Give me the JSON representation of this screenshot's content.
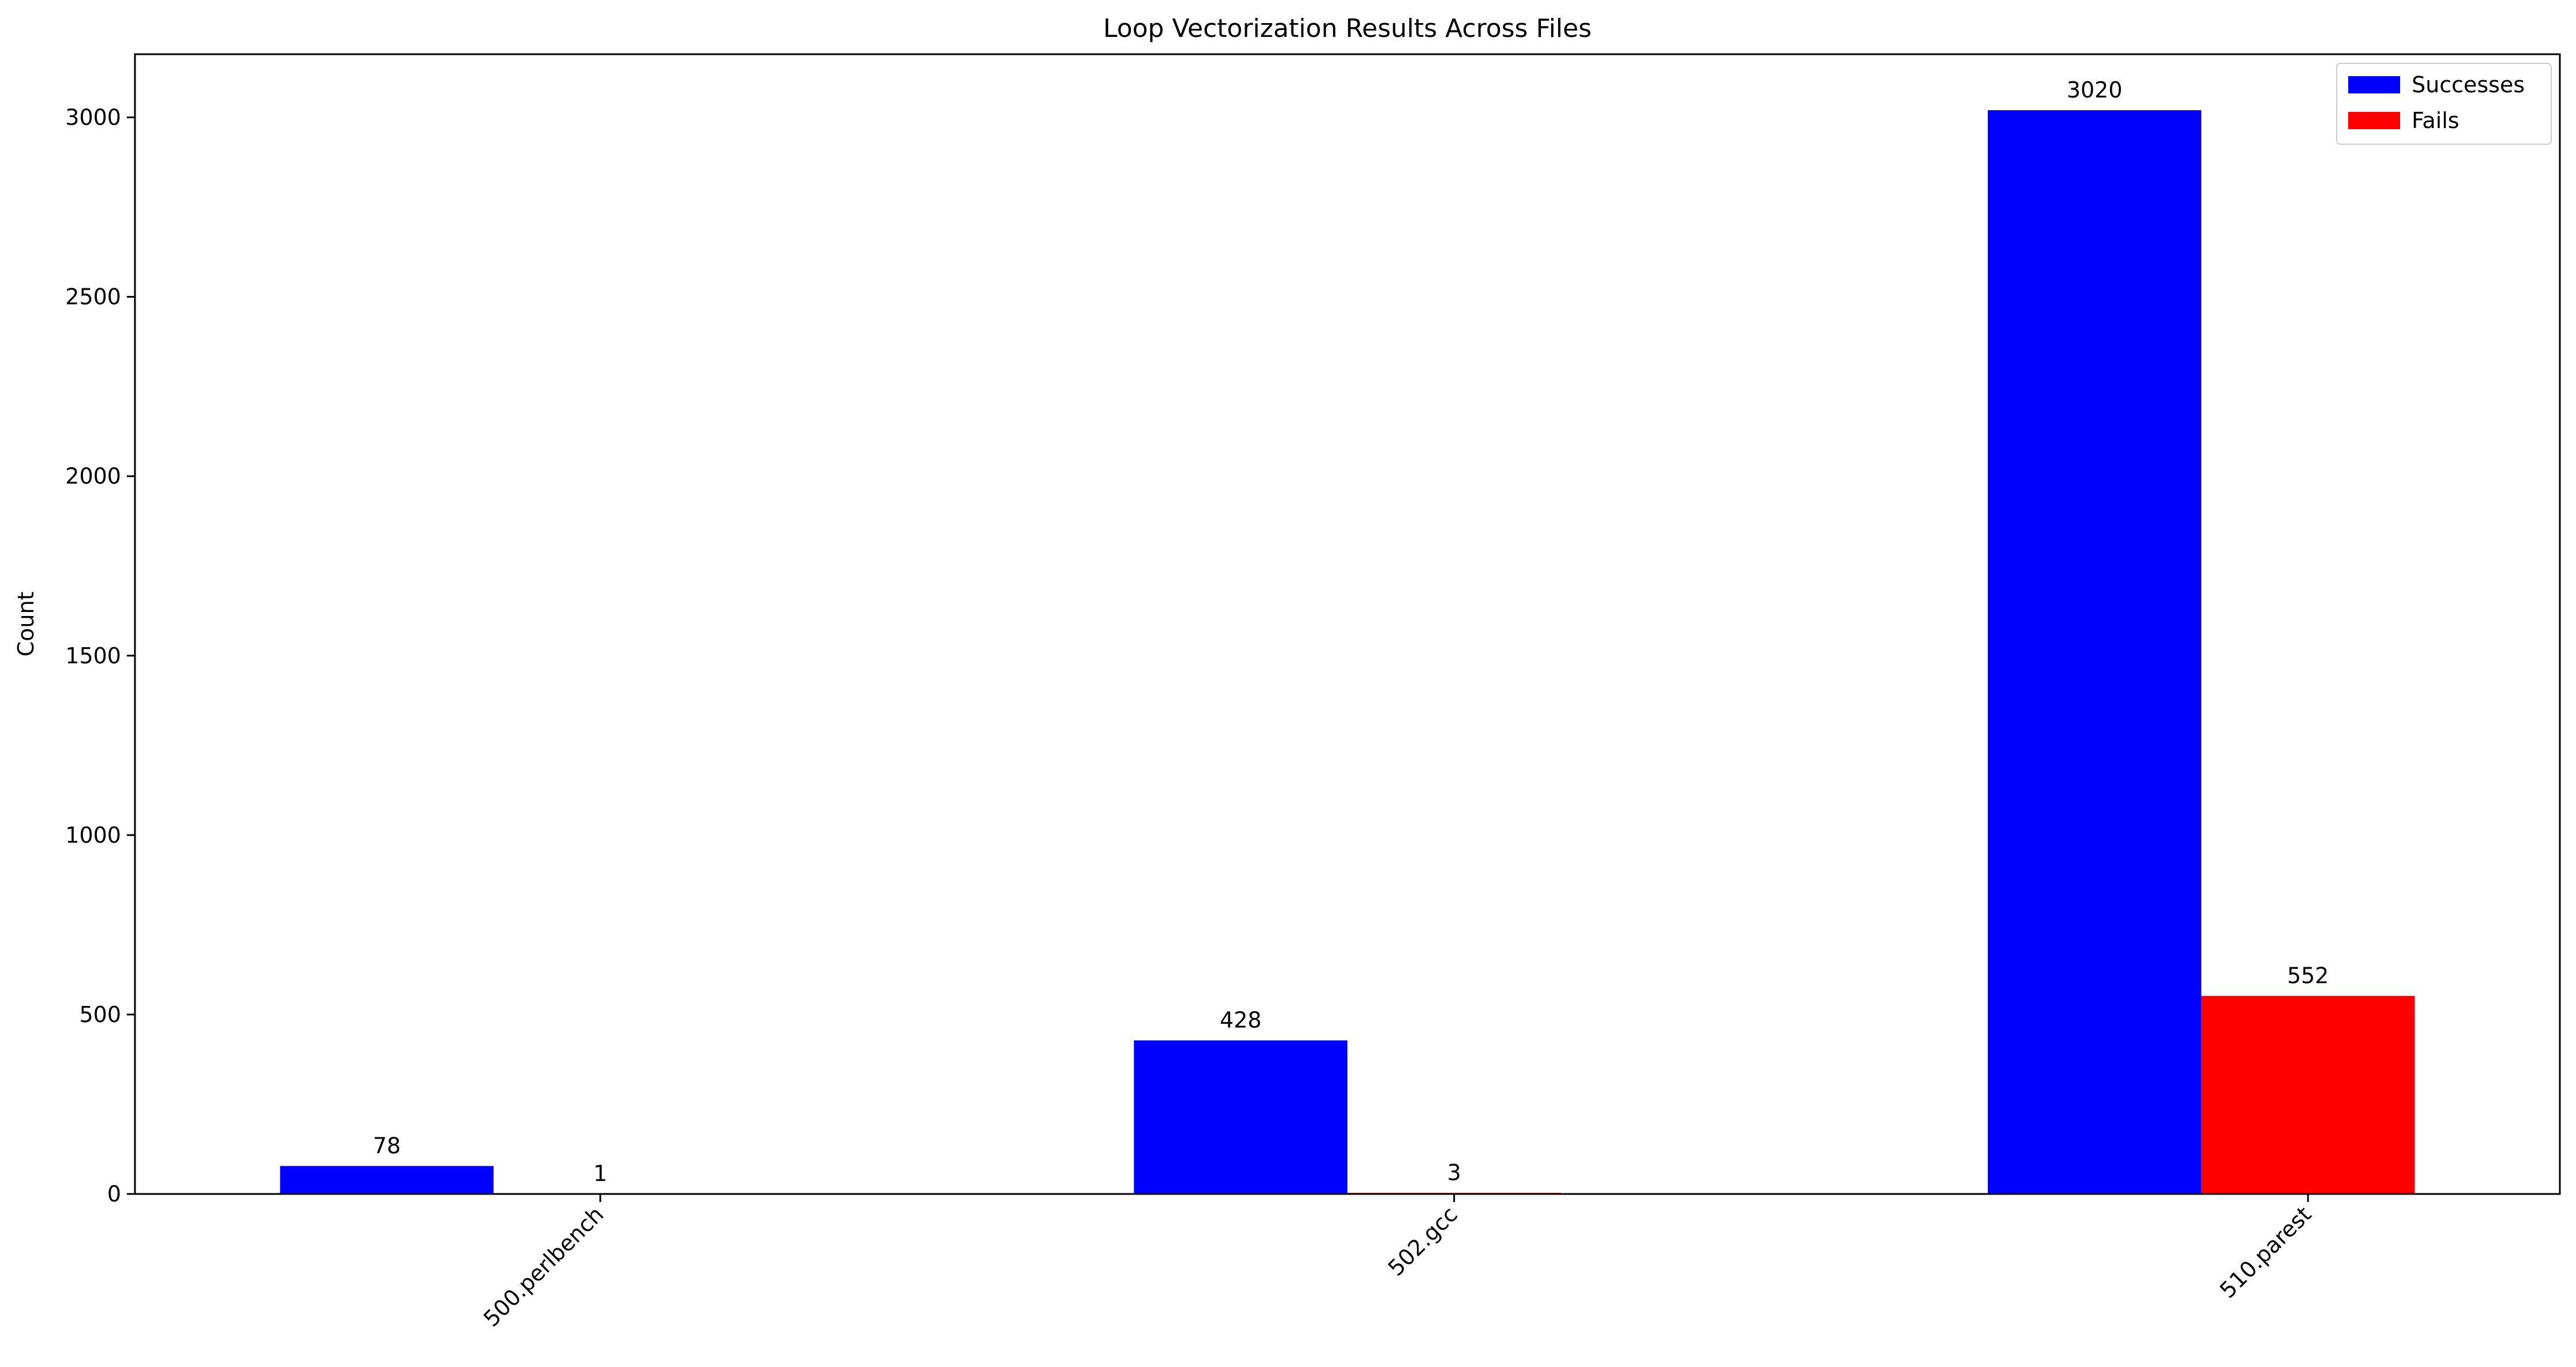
{
  "chart_data": {
    "type": "bar",
    "title": "Loop Vectorization Results Across Files",
    "xlabel": "",
    "ylabel": "Count",
    "categories": [
      "500.perlbench",
      "502.gcc",
      "510.parest"
    ],
    "series": [
      {
        "name": "Successes",
        "color": "#0000ff",
        "values": [
          78,
          428,
          3020
        ]
      },
      {
        "name": "Fails",
        "color": "#ff0000",
        "values": [
          1,
          3,
          552
        ]
      }
    ],
    "ylim": [
      0,
      3176
    ],
    "yticks": [
      0,
      500,
      1000,
      1500,
      2000,
      2500,
      3000
    ],
    "ytick_labels": [
      "0",
      "500",
      "1000",
      "1500",
      "2000",
      "2500",
      "3000"
    ],
    "legend": {
      "position": "top-right",
      "labels": [
        "Successes",
        "Fails"
      ]
    },
    "grid": false,
    "data_labels": {
      "Successes": [
        "78",
        "428",
        "3020"
      ],
      "Fails": [
        "1",
        "3",
        "552"
      ]
    },
    "xtick_rotation_deg": 45
  }
}
